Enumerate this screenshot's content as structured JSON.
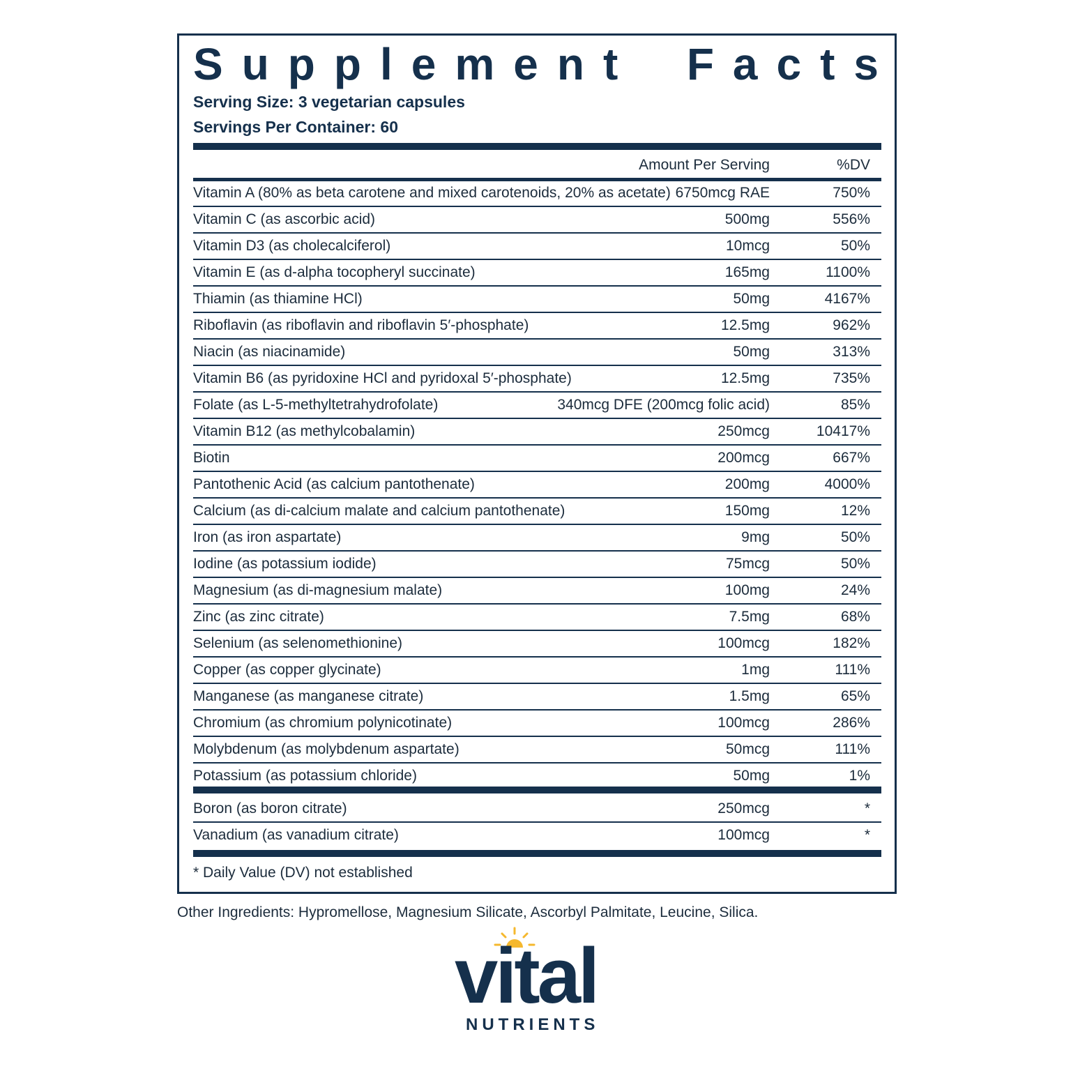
{
  "label": {
    "title": "Supplement Facts",
    "serving_size": "Serving Size: 3 vegetarian capsules",
    "servings_per_container": "Servings Per Container: 60",
    "columns": [
      "Amount Per Serving",
      "%DV"
    ],
    "rows": [
      [
        "Vitamin A (80% as beta carotene and mixed carotenoids, 20% as acetate)",
        "6750mcg RAE",
        "750%"
      ],
      [
        "Vitamin C (as ascorbic acid)",
        "500mg",
        "556%"
      ],
      [
        "Vitamin D3 (as cholecalciferol)",
        "10mcg",
        "50%"
      ],
      [
        "Vitamin E (as d-alpha tocopheryl succinate)",
        "165mg",
        "1100%"
      ],
      [
        "Thiamin (as thiamine HCl)",
        "50mg",
        "4167%"
      ],
      [
        "Riboflavin (as riboflavin and riboflavin 5′-phosphate)",
        "12.5mg",
        "962%"
      ],
      [
        "Niacin (as niacinamide)",
        "50mg",
        "313%"
      ],
      [
        "Vitamin B6 (as pyridoxine HCl and pyridoxal 5′-phosphate)",
        "12.5mg",
        "735%"
      ],
      [
        "Folate (as L-5-methyltetrahydrofolate)",
        "340mcg DFE (200mcg folic acid)",
        "85%"
      ],
      [
        "Vitamin B12 (as methylcobalamin)",
        "250mcg",
        "10417%"
      ],
      [
        "Biotin",
        "200mcg",
        "667%"
      ],
      [
        "Pantothenic Acid (as calcium pantothenate)",
        "200mg",
        "4000%"
      ],
      [
        "Calcium (as di-calcium malate and calcium pantothenate)",
        "150mg",
        "12%"
      ],
      [
        "Iron (as iron aspartate)",
        "9mg",
        "50%"
      ],
      [
        "Iodine (as potassium iodide)",
        "75mcg",
        "50%"
      ],
      [
        "Magnesium (as di-magnesium malate)",
        "100mg",
        "24%"
      ],
      [
        "Zinc (as zinc citrate)",
        "7.5mg",
        "68%"
      ],
      [
        "Selenium (as selenomethionine)",
        "100mcg",
        "182%"
      ],
      [
        "Copper (as copper glycinate)",
        "1mg",
        "111%"
      ],
      [
        "Manganese (as manganese citrate)",
        "1.5mg",
        "65%"
      ],
      [
        "Chromium (as chromium polynicotinate)",
        "100mcg",
        "286%"
      ],
      [
        "Molybdenum (as molybdenum aspartate)",
        "50mcg",
        "111%"
      ],
      [
        "Potassium (as potassium chloride)",
        "50mg",
        "1%"
      ]
    ],
    "other_rows": [
      [
        "Boron (as boron citrate)",
        "250mcg",
        "*"
      ],
      [
        "Vanadium (as vanadium citrate)",
        "100mcg",
        "*"
      ]
    ],
    "footnote": "* Daily Value (DV) not established"
  },
  "other_ingredients": "Other Ingredients: Hypromellose, Magnesium Silicate, Ascorbyl Palmitate, Leucine, Silica.",
  "logo": {
    "name": "vital",
    "subname": "NUTRIENTS"
  }
}
